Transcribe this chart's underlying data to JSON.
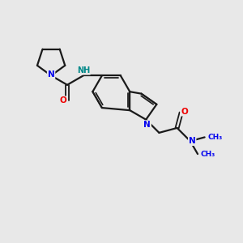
{
  "bg_color": "#e8e8e8",
  "bond_color": "#1a1a1a",
  "atom_color_N": "#0000ee",
  "atom_color_O": "#ee0000",
  "atom_color_NH": "#008888",
  "bond_width": 1.6,
  "fig_size": [
    3.0,
    3.0
  ],
  "dpi": 100,
  "xlim": [
    0,
    10
  ],
  "ylim": [
    0,
    10
  ]
}
